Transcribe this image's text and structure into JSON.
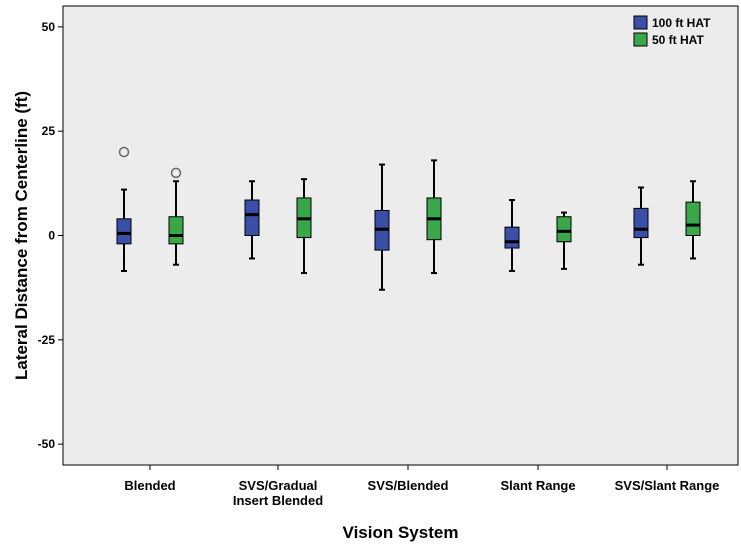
{
  "chart_data": {
    "type": "boxplot",
    "xlabel": "Vision System",
    "ylabel": "Lateral Distance from Centerline (ft)",
    "ylim": [
      -55,
      55
    ],
    "yticks": [
      50,
      25,
      0,
      -25,
      -50
    ],
    "grid": false,
    "legend_position": "top-right",
    "categories": [
      [
        "Blended"
      ],
      [
        "SVS/Gradual",
        "Insert Blended"
      ],
      [
        "SVS/Blended"
      ],
      [
        "Slant Range"
      ],
      [
        "SVS/Slant Range"
      ]
    ],
    "series": [
      {
        "name": "100 ft HAT",
        "color": "#3b4ea8",
        "boxes": [
          {
            "min": -8.5,
            "q1": -2.0,
            "median": 0.5,
            "q3": 4.0,
            "max": 11.0,
            "outliers": [
              20.0
            ]
          },
          {
            "min": -5.5,
            "q1": 0.0,
            "median": 5.0,
            "q3": 8.5,
            "max": 13.0,
            "outliers": []
          },
          {
            "min": -13.0,
            "q1": -3.5,
            "median": 1.5,
            "q3": 6.0,
            "max": 17.0,
            "outliers": []
          },
          {
            "min": -8.5,
            "q1": -3.0,
            "median": -1.5,
            "q3": 2.0,
            "max": 8.5,
            "outliers": []
          },
          {
            "min": -7.0,
            "q1": -0.5,
            "median": 1.5,
            "q3": 6.5,
            "max": 11.5,
            "outliers": []
          }
        ]
      },
      {
        "name": "50 ft HAT",
        "color": "#3aa84a",
        "boxes": [
          {
            "min": -7.0,
            "q1": -2.0,
            "median": 0.0,
            "q3": 4.5,
            "max": 13.0,
            "outliers": [
              15.0
            ]
          },
          {
            "min": -9.0,
            "q1": -0.5,
            "median": 4.0,
            "q3": 9.0,
            "max": 13.5,
            "outliers": []
          },
          {
            "min": -9.0,
            "q1": -1.0,
            "median": 4.0,
            "q3": 9.0,
            "max": 18.0,
            "outliers": []
          },
          {
            "min": -8.0,
            "q1": -1.5,
            "median": 1.0,
            "q3": 4.5,
            "max": 5.5,
            "outliers": []
          },
          {
            "min": -5.5,
            "q1": 0.0,
            "median": 2.5,
            "q3": 8.0,
            "max": 13.0,
            "outliers": []
          }
        ]
      }
    ]
  },
  "colors": {
    "plot_background": "#ececec",
    "axis": "#000000"
  }
}
